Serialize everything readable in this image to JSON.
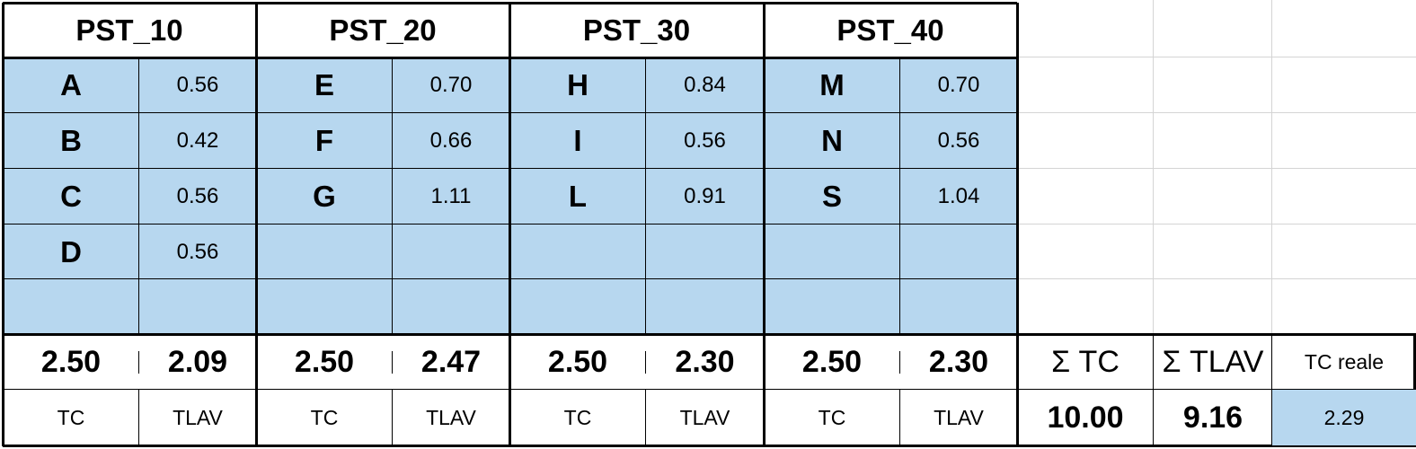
{
  "groups": [
    {
      "name": "PST_10",
      "rows": [
        [
          "A",
          "0.56"
        ],
        [
          "B",
          "0.42"
        ],
        [
          "C",
          "0.56"
        ],
        [
          "D",
          "0.56"
        ],
        [
          "",
          ""
        ]
      ],
      "tc": "2.50",
      "tlav": "2.09"
    },
    {
      "name": "PST_20",
      "rows": [
        [
          "E",
          "0.70"
        ],
        [
          "F",
          "0.66"
        ],
        [
          "G",
          "1.11"
        ],
        [
          "",
          ""
        ],
        [
          "",
          ""
        ]
      ],
      "tc": "2.50",
      "tlav": "2.47"
    },
    {
      "name": "PST_30",
      "rows": [
        [
          "H",
          "0.84"
        ],
        [
          "I",
          "0.56"
        ],
        [
          "L",
          "0.91"
        ],
        [
          "",
          ""
        ],
        [
          "",
          ""
        ]
      ],
      "tc": "2.50",
      "tlav": "2.30"
    },
    {
      "name": "PST_40",
      "rows": [
        [
          "M",
          "0.70"
        ],
        [
          "N",
          "0.56"
        ],
        [
          "S",
          "1.04"
        ],
        [
          "",
          ""
        ],
        [
          "",
          ""
        ]
      ],
      "tc": "2.50",
      "tlav": "2.30"
    }
  ],
  "labels": {
    "tc": "TC",
    "tlav": "TLAV"
  },
  "summary": {
    "sum_tc_label": "Σ TC",
    "sum_tlav_label": "Σ TLAV",
    "tc_reale_label": "TC reale",
    "sum_tc": "10.00",
    "sum_tlav": "9.16",
    "tc_reale": "2.29"
  },
  "colors": {
    "fill": "#b7d7ef",
    "gridline": "#d4d4d4"
  }
}
